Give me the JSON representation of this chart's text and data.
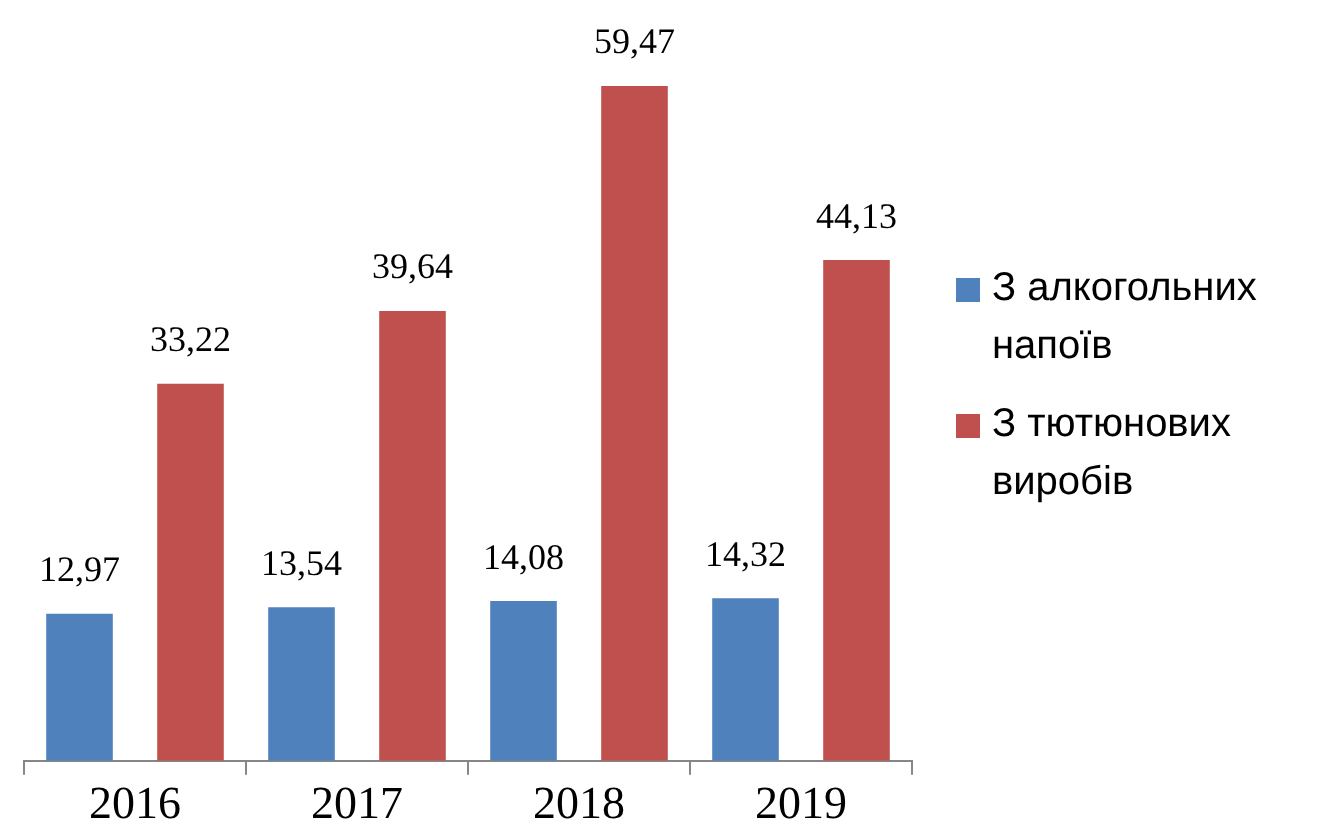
{
  "chart_data": {
    "type": "bar",
    "categories": [
      "2016",
      "2017",
      "2018",
      "2019"
    ],
    "series": [
      {
        "name": "З алкогольних напоїв",
        "color": "#4f81bd",
        "values": [
          12.97,
          13.54,
          14.08,
          14.32
        ],
        "value_labels": [
          "12,97",
          "13,54",
          "14,08",
          "14,32"
        ]
      },
      {
        "name": "З тютюнових виробів",
        "color": "#c0504d",
        "values": [
          33.22,
          39.64,
          59.47,
          44.13
        ],
        "value_labels": [
          "33,22",
          "39,64",
          "59,47",
          "44,13"
        ]
      }
    ],
    "legend": "right",
    "tick_labels": "x",
    "grid": false
  }
}
